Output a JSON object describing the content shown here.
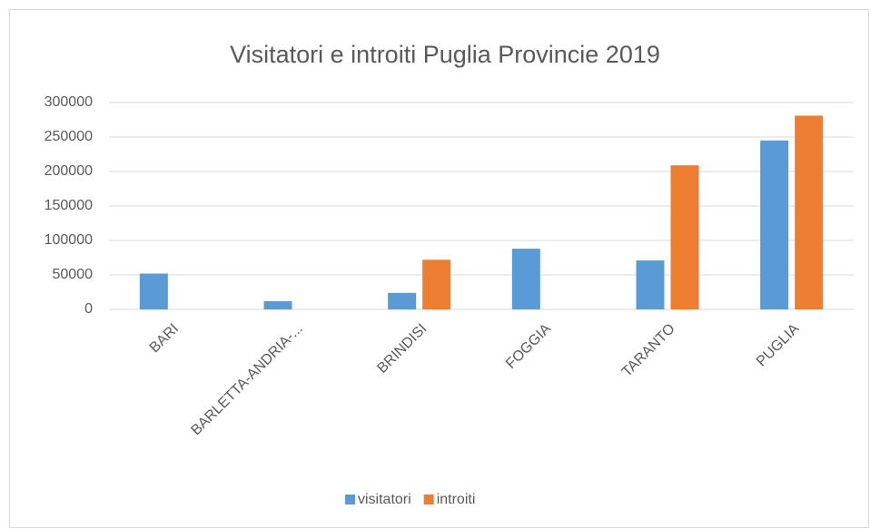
{
  "chart_data": {
    "type": "bar",
    "title": "Visitatori e introiti Puglia Provincie 2019",
    "categories": [
      "BARI",
      "BARLETTA-ANDRIA-...",
      "BRINDISI",
      "FOGGIA",
      "TARANTO",
      "PUGLIA"
    ],
    "series": [
      {
        "name": "visitatori",
        "color": "#5b9bd5",
        "values": [
          52000,
          12000,
          24000,
          88000,
          71000,
          245000
        ]
      },
      {
        "name": "introiti",
        "color": "#ed7d31",
        "values": [
          null,
          null,
          72000,
          null,
          209000,
          281000
        ]
      }
    ],
    "ylim": [
      0,
      300000
    ],
    "yticks": [
      0,
      50000,
      100000,
      150000,
      200000,
      250000,
      300000
    ],
    "grid": true,
    "legend": "bottom"
  }
}
